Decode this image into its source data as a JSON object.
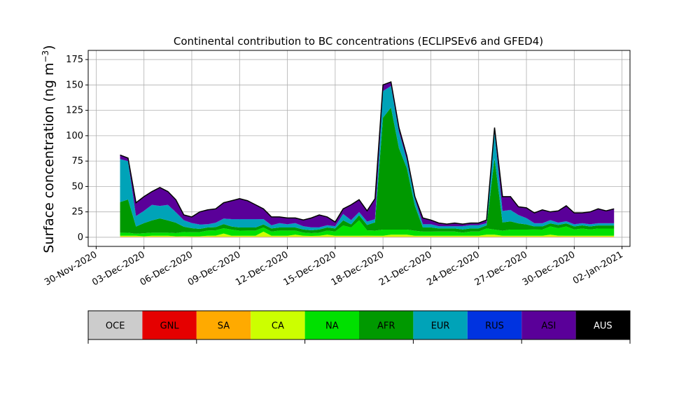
{
  "chart_data": {
    "type": "area",
    "title": "Continental contribution to BC concentrations (ECLIPSEv6 and GFED4)",
    "ylabel": "Surface concentration (ng m",
    "ylabel_sup": "−3",
    "ylabel_close": ")",
    "xlabel": "",
    "ylim": [
      -9,
      184
    ],
    "xlim": [
      "2020-11-29T12:00",
      "2021-01-02T12:00"
    ],
    "grid": true,
    "stacked": true,
    "y_ticks": [
      0,
      25,
      50,
      75,
      100,
      125,
      150,
      175
    ],
    "x_ticks": [
      {
        "date": "2020-11-30",
        "label": "30-Nov-2020"
      },
      {
        "date": "2020-12-03",
        "label": "03-Dec-2020"
      },
      {
        "date": "2020-12-06",
        "label": "06-Dec-2020"
      },
      {
        "date": "2020-12-09",
        "label": "09-Dec-2020"
      },
      {
        "date": "2020-12-12",
        "label": "12-Dec-2020"
      },
      {
        "date": "2020-12-15",
        "label": "15-Dec-2020"
      },
      {
        "date": "2020-12-18",
        "label": "18-Dec-2020"
      },
      {
        "date": "2020-12-21",
        "label": "21-Dec-2020"
      },
      {
        "date": "2020-12-24",
        "label": "24-Dec-2020"
      },
      {
        "date": "2020-12-27",
        "label": "27-Dec-2020"
      },
      {
        "date": "2020-12-30",
        "label": "30-Dec-2020"
      },
      {
        "date": "2021-01-02",
        "label": "02-Jan-2021"
      }
    ],
    "x": [
      "2020-12-01T12:00",
      "2020-12-02T00:00",
      "2020-12-02T12:00",
      "2020-12-03T00:00",
      "2020-12-03T12:00",
      "2020-12-04T00:00",
      "2020-12-04T12:00",
      "2020-12-05T00:00",
      "2020-12-05T12:00",
      "2020-12-06T00:00",
      "2020-12-06T12:00",
      "2020-12-07T00:00",
      "2020-12-07T12:00",
      "2020-12-08T00:00",
      "2020-12-08T12:00",
      "2020-12-09T00:00",
      "2020-12-09T12:00",
      "2020-12-10T00:00",
      "2020-12-10T12:00",
      "2020-12-11T00:00",
      "2020-12-11T12:00",
      "2020-12-12T00:00",
      "2020-12-12T12:00",
      "2020-12-13T00:00",
      "2020-12-13T12:00",
      "2020-12-14T00:00",
      "2020-12-14T12:00",
      "2020-12-15T00:00",
      "2020-12-15T12:00",
      "2020-12-16T00:00",
      "2020-12-16T12:00",
      "2020-12-17T00:00",
      "2020-12-17T12:00",
      "2020-12-18T00:00",
      "2020-12-18T12:00",
      "2020-12-19T00:00",
      "2020-12-19T12:00",
      "2020-12-20T00:00",
      "2020-12-20T12:00",
      "2020-12-21T00:00",
      "2020-12-21T12:00",
      "2020-12-22T00:00",
      "2020-12-22T12:00",
      "2020-12-23T00:00",
      "2020-12-23T12:00",
      "2020-12-24T00:00",
      "2020-12-24T12:00",
      "2020-12-25T00:00",
      "2020-12-25T12:00",
      "2020-12-26T00:00",
      "2020-12-26T12:00",
      "2020-12-27T00:00",
      "2020-12-27T12:00",
      "2020-12-28T00:00",
      "2020-12-28T12:00",
      "2020-12-29T00:00",
      "2020-12-29T12:00",
      "2020-12-30T00:00",
      "2020-12-30T12:00",
      "2020-12-31T00:00",
      "2020-12-31T12:00",
      "2021-01-01T00:00",
      "2021-01-01T12:00"
    ],
    "series": [
      {
        "name": "OCE",
        "color": "#cccccc",
        "values": [
          0.2,
          0.2,
          0.2,
          0.2,
          0.2,
          0.2,
          0.2,
          0.2,
          0.2,
          0.2,
          0.2,
          0.2,
          0.2,
          0.2,
          0.2,
          0.2,
          0.2,
          0.2,
          0.2,
          0.2,
          0.2,
          0.2,
          0.2,
          0.2,
          0.2,
          0.2,
          0.2,
          0.2,
          0.2,
          0.2,
          0.2,
          0.2,
          0.2,
          0.2,
          0.2,
          0.2,
          0.2,
          0.2,
          0.2,
          0.2,
          0.2,
          0.2,
          0.2,
          0.2,
          0.2,
          0.2,
          0.2,
          0.2,
          0.2,
          0.2,
          0.2,
          0.2,
          0.2,
          0.2,
          0.2,
          0.2,
          0.2,
          0.2,
          0.2,
          0.2,
          0.2,
          0.2,
          0.2
        ]
      },
      {
        "name": "GNL",
        "color": "#e50000",
        "values": [
          0.1,
          0.1,
          0.1,
          0.1,
          0.1,
          0.1,
          0.1,
          0.1,
          0.1,
          0.1,
          0.1,
          0.1,
          0.1,
          0.1,
          0.1,
          0.1,
          0.1,
          0.1,
          0.1,
          0.1,
          0.1,
          0.1,
          0.1,
          0.1,
          0.1,
          0.1,
          0.1,
          0.1,
          0.1,
          0.1,
          0.1,
          0.1,
          0.1,
          0.1,
          0.1,
          0.1,
          0.1,
          0.1,
          0.1,
          0.1,
          0.1,
          0.1,
          0.1,
          0.1,
          0.1,
          0.1,
          0.1,
          0.1,
          0.1,
          0.1,
          0.1,
          0.1,
          0.1,
          0.1,
          0.1,
          0.1,
          0.1,
          0.1,
          0.1,
          0.1,
          0.1,
          0.1,
          0.1
        ]
      },
      {
        "name": "SA",
        "color": "#ffaa00",
        "values": [
          0.2,
          0.2,
          0.2,
          0.2,
          0.2,
          0.2,
          0.2,
          0.2,
          0.2,
          0.2,
          0.2,
          0.2,
          0.2,
          0.2,
          0.2,
          0.2,
          0.2,
          0.2,
          0.2,
          0.2,
          0.2,
          0.2,
          0.2,
          0.2,
          0.2,
          0.2,
          0.2,
          0.2,
          0.2,
          0.2,
          0.2,
          0.2,
          0.2,
          0.2,
          0.2,
          0.2,
          0.2,
          0.2,
          0.2,
          0.2,
          0.2,
          0.2,
          0.2,
          0.2,
          0.2,
          0.2,
          0.2,
          0.2,
          0.2,
          0.2,
          0.2,
          0.2,
          0.2,
          0.2,
          0.2,
          0.2,
          0.2,
          0.2,
          0.2,
          0.2,
          0.2,
          0.2,
          0.2
        ]
      },
      {
        "name": "CA",
        "color": "#ccff00",
        "values": [
          1,
          1,
          1,
          0.5,
          1,
          1,
          1,
          0.5,
          0.5,
          0.5,
          0.5,
          1,
          1,
          3,
          1,
          1,
          1,
          1,
          5,
          1,
          1,
          1,
          2,
          1,
          1,
          1,
          2,
          1,
          1,
          1,
          1,
          1,
          1,
          1,
          2,
          2,
          2,
          1,
          1,
          1,
          1,
          1,
          1,
          1,
          1,
          1,
          2,
          2,
          1,
          1,
          1,
          1,
          1,
          1,
          2,
          1,
          1,
          1,
          1,
          1,
          1,
          1,
          1
        ]
      },
      {
        "name": "NA",
        "color": "#00e000",
        "values": [
          3,
          3,
          2,
          3,
          3,
          3,
          3,
          3,
          4,
          4,
          4,
          5,
          5,
          5,
          6,
          5,
          5,
          5,
          4,
          4,
          5,
          5,
          4,
          3,
          3,
          3,
          4,
          4,
          10,
          8,
          15,
          5,
          5,
          6,
          5,
          5,
          5,
          5,
          4,
          4,
          4,
          4,
          4,
          3,
          4,
          4,
          6,
          5,
          5,
          6,
          6,
          6,
          6,
          6,
          8,
          7,
          9,
          6,
          7,
          6,
          7,
          7,
          7
        ]
      },
      {
        "name": "AFR",
        "color": "#009900",
        "values": [
          30,
          33,
          7,
          10,
          12,
          14,
          12,
          10,
          5,
          4,
          3,
          3,
          3,
          4,
          3,
          3,
          3,
          3,
          3,
          3,
          3,
          3,
          3,
          3,
          3,
          3,
          3,
          3,
          5,
          3,
          5,
          5,
          8,
          110,
          120,
          80,
          60,
          25,
          4,
          4,
          3,
          3,
          3,
          3,
          3,
          3,
          3,
          70,
          8,
          8,
          6,
          5,
          3,
          3,
          3,
          3,
          3,
          3,
          3,
          3,
          3,
          3,
          3
        ]
      },
      {
        "name": "EUR",
        "color": "#00a3b8",
        "values": [
          42,
          38,
          10,
          12,
          15,
          12,
          15,
          10,
          6,
          5,
          4,
          3,
          4,
          5,
          7,
          8,
          8,
          8,
          5,
          3,
          4,
          3,
          4,
          3,
          3,
          2,
          2,
          2,
          6,
          4,
          3,
          3,
          3,
          26,
          21,
          16,
          8,
          7,
          3,
          3,
          2,
          2,
          2,
          3,
          3,
          3,
          2,
          26,
          11,
          11,
          8,
          6,
          3,
          3,
          3,
          2,
          2,
          2,
          2,
          2,
          2,
          2,
          2
        ]
      },
      {
        "name": "RUS",
        "color": "#0033e0",
        "values": [
          0.2,
          0.2,
          0.2,
          0.2,
          0.2,
          0.2,
          0.2,
          0.2,
          0.2,
          0.2,
          0.2,
          0.2,
          0.2,
          0.2,
          0.2,
          0.2,
          0.2,
          0.2,
          0.2,
          0.2,
          0.2,
          0.2,
          0.2,
          0.2,
          0.2,
          0.2,
          0.2,
          0.2,
          0.2,
          0.2,
          0.2,
          0.2,
          0.2,
          0.2,
          0.2,
          0.2,
          0.2,
          0.2,
          0.2,
          0.2,
          0.2,
          0.2,
          0.2,
          0.2,
          0.2,
          0.2,
          0.2,
          0.2,
          0.2,
          0.2,
          0.2,
          0.2,
          0.2,
          0.2,
          0.2,
          0.2,
          0.2,
          0.2,
          0.2,
          0.2,
          0.2,
          0.2,
          0.2
        ]
      },
      {
        "name": "ASI",
        "color": "#5a0099",
        "values": [
          4,
          3,
          13,
          14,
          13,
          18,
          13,
          12,
          5,
          6,
          12,
          14,
          13,
          15,
          18,
          20,
          18,
          14,
          10,
          8,
          6,
          6,
          5,
          6,
          10,
          12,
          8,
          4,
          5,
          15,
          12,
          10,
          20,
          6,
          4,
          4,
          4,
          2,
          6,
          4,
          3,
          2,
          3,
          2,
          2,
          2,
          3,
          4,
          14,
          13,
          8,
          10,
          10,
          13,
          8,
          11,
          15,
          11,
          10,
          12,
          14,
          12,
          14
        ]
      },
      {
        "name": "AUS",
        "color": "#000000",
        "values": [
          0,
          0,
          0,
          0,
          0,
          0,
          0,
          0,
          0,
          0,
          0,
          0,
          0,
          0,
          0,
          0,
          0,
          0,
          0,
          0,
          0,
          0,
          0,
          0,
          0,
          0,
          0,
          0,
          0,
          0,
          0,
          0,
          0,
          0,
          0,
          0,
          0,
          0,
          0,
          0,
          0,
          0,
          0,
          0,
          0,
          0,
          0,
          0,
          0,
          0,
          0,
          0,
          0,
          0,
          0,
          0,
          0,
          0,
          0,
          0,
          0,
          0,
          0
        ]
      }
    ],
    "total": [
      81,
      78,
      34,
      40,
      45,
      49,
      45,
      37,
      22,
      20,
      25,
      27,
      28,
      34,
      36,
      38,
      36,
      32,
      28,
      20,
      20,
      19,
      19,
      17,
      19,
      22,
      20,
      15,
      28,
      32,
      37,
      26,
      38,
      150,
      153,
      108,
      80,
      40,
      19,
      17,
      14,
      13,
      14,
      13,
      14,
      14,
      17,
      108,
      40,
      40,
      30,
      29,
      24,
      27,
      25,
      26,
      31,
      24,
      24,
      25,
      28,
      26,
      28
    ]
  },
  "legend": {
    "items": [
      {
        "label": "OCE",
        "color": "#cccccc"
      },
      {
        "label": "GNL",
        "color": "#e50000"
      },
      {
        "label": "SA",
        "color": "#ffaa00"
      },
      {
        "label": "CA",
        "color": "#ccff00"
      },
      {
        "label": "NA",
        "color": "#00e000"
      },
      {
        "label": "AFR",
        "color": "#009900"
      },
      {
        "label": "EUR",
        "color": "#00a3b8"
      },
      {
        "label": "RUS",
        "color": "#0033e0"
      },
      {
        "label": "ASI",
        "color": "#5a0099"
      },
      {
        "label": "AUS",
        "color": "#000000"
      }
    ]
  }
}
